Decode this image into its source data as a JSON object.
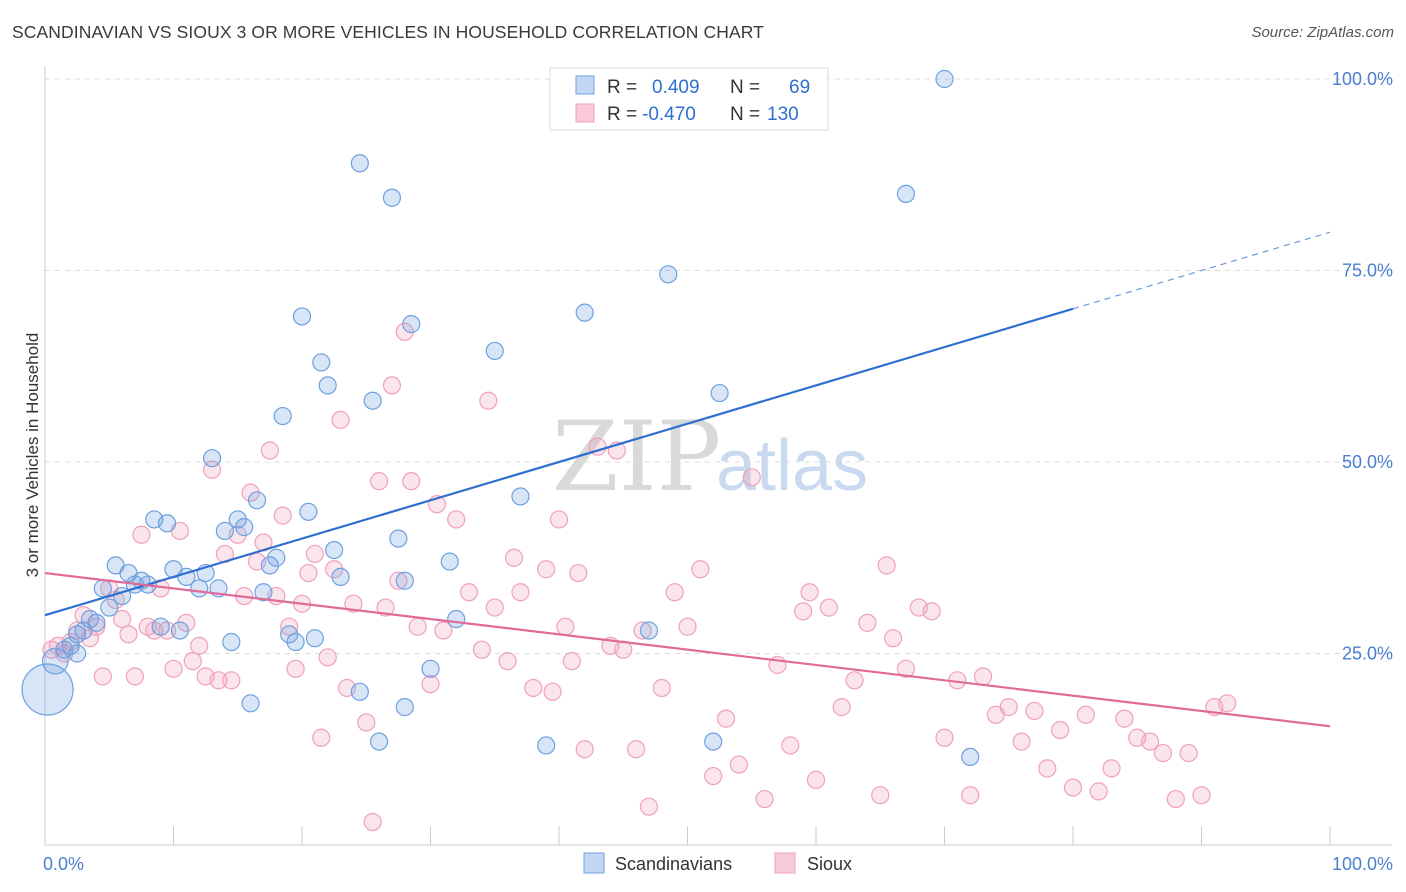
{
  "title": "SCANDINAVIAN VS SIOUX 3 OR MORE VEHICLES IN HOUSEHOLD CORRELATION CHART",
  "source": "Source: ZipAtlas.com",
  "watermark": {
    "zip": "ZIP",
    "atlas": "atlas"
  },
  "legend": {
    "rows": [
      {
        "r_label": "R =",
        "r_value": "0.409",
        "n_label": "N =",
        "n_value": "69"
      },
      {
        "r_label": "R =",
        "r_value": "-0.470",
        "n_label": "N =",
        "n_value": "130"
      }
    ]
  },
  "bottom_legend": {
    "items": [
      "Scandinavians",
      "Sioux"
    ]
  },
  "chart_data": {
    "type": "scatter",
    "title": "SCANDINAVIAN VS SIOUX 3 OR MORE VEHICLES IN HOUSEHOLD CORRELATION CHART",
    "xlabel": "",
    "ylabel": "3 or more Vehicles in Household",
    "xlim": [
      0,
      100
    ],
    "ylim": [
      0,
      100
    ],
    "x_tick_labels": [
      "0.0%",
      "100.0%"
    ],
    "y_ticks": [
      25,
      50,
      75,
      100
    ],
    "y_tick_labels": [
      "25.0%",
      "50.0%",
      "75.0%",
      "100.0%"
    ],
    "grid": true,
    "colors": {
      "scandinavians": "#6fa0e0",
      "sioux": "#f0a0bc",
      "blue_line": "#2e6fd0",
      "pink_line": "#e06a98"
    },
    "series": [
      {
        "name": "Scandinavians",
        "r": 0.409,
        "n": 69,
        "trend": {
          "x0": 0,
          "y0": 30.0,
          "x1": 80,
          "y1": 70.0,
          "dash_to_x": 100,
          "dash_to_y": 80.0
        },
        "points": [
          [
            0.2,
            20.3,
            3
          ],
          [
            0.8,
            24.0,
            1.5
          ],
          [
            1.5,
            25.5,
            1
          ],
          [
            2.0,
            26.0,
            1
          ],
          [
            2.5,
            27.5,
            1
          ],
          [
            3.0,
            28.0,
            1
          ],
          [
            3.5,
            29.5,
            1
          ],
          [
            4.0,
            29.0,
            1
          ],
          [
            4.5,
            33.5,
            1
          ],
          [
            5.0,
            31.0,
            1
          ],
          [
            5.5,
            36.5,
            1
          ],
          [
            6.0,
            32.5,
            1
          ],
          [
            6.5,
            35.5,
            1
          ],
          [
            7.0,
            34.0,
            1
          ],
          [
            7.5,
            34.5,
            1
          ],
          [
            8.5,
            42.5,
            1
          ],
          [
            9.0,
            28.5,
            1
          ],
          [
            9.5,
            42.0,
            1
          ],
          [
            10.0,
            36.0,
            1
          ],
          [
            10.5,
            28.0,
            1
          ],
          [
            11.0,
            35.0,
            1
          ],
          [
            12.0,
            33.5,
            1
          ],
          [
            12.5,
            35.5,
            1
          ],
          [
            13.0,
            50.5,
            1
          ],
          [
            13.5,
            33.5,
            1
          ],
          [
            14.0,
            41.0,
            1
          ],
          [
            14.5,
            26.5,
            1
          ],
          [
            15.0,
            42.5,
            1
          ],
          [
            15.5,
            41.5,
            1
          ],
          [
            16.0,
            18.5,
            1
          ],
          [
            16.5,
            45.0,
            1
          ],
          [
            17.0,
            33.0,
            1
          ],
          [
            17.5,
            36.5,
            1
          ],
          [
            18.0,
            37.5,
            1
          ],
          [
            18.5,
            56.0,
            1
          ],
          [
            19.0,
            27.5,
            1
          ],
          [
            19.5,
            26.5,
            1
          ],
          [
            20.0,
            69.0,
            1
          ],
          [
            20.5,
            43.5,
            1
          ],
          [
            21.0,
            27.0,
            1
          ],
          [
            21.5,
            63.0,
            1
          ],
          [
            22.0,
            60.0,
            1
          ],
          [
            22.5,
            38.5,
            1
          ],
          [
            23.0,
            35.0,
            1
          ],
          [
            24.5,
            89.0,
            1
          ],
          [
            24.5,
            20.0,
            1
          ],
          [
            25.5,
            58.0,
            1
          ],
          [
            26.0,
            13.5,
            1
          ],
          [
            27.0,
            84.5,
            1
          ],
          [
            27.5,
            40.0,
            1
          ],
          [
            28.0,
            18.0,
            1
          ],
          [
            28.0,
            34.5,
            1
          ],
          [
            28.5,
            68.0,
            1
          ],
          [
            30.0,
            23.0,
            1
          ],
          [
            31.5,
            37.0,
            1
          ],
          [
            32.0,
            29.5,
            1
          ],
          [
            35.0,
            64.5,
            1
          ],
          [
            37.0,
            45.5,
            1
          ],
          [
            39.0,
            13.0,
            1
          ],
          [
            42.0,
            69.5,
            1
          ],
          [
            47.0,
            28.0,
            1
          ],
          [
            48.5,
            74.5,
            1
          ],
          [
            52.0,
            13.5,
            1
          ],
          [
            52.5,
            59.0,
            1
          ],
          [
            67.0,
            85.0,
            1
          ],
          [
            70.0,
            100.0,
            1
          ],
          [
            72.0,
            11.5,
            1
          ],
          [
            2.5,
            25.0,
            1
          ],
          [
            8.0,
            34.0,
            1
          ]
        ]
      },
      {
        "name": "Sioux",
        "r": -0.47,
        "n": 130,
        "trend": {
          "x0": 0,
          "y0": 35.5,
          "x1": 100,
          "y1": 15.5
        },
        "points": [
          [
            0.5,
            25.5,
            1
          ],
          [
            1.0,
            26.0,
            1
          ],
          [
            1.5,
            25.0,
            1
          ],
          [
            2.0,
            26.5,
            1
          ],
          [
            2.5,
            28.0,
            1
          ],
          [
            3.0,
            30.0,
            1
          ],
          [
            3.5,
            27.0,
            1
          ],
          [
            4.0,
            28.5,
            1
          ],
          [
            4.5,
            22.0,
            1
          ],
          [
            5.0,
            33.5,
            1
          ],
          [
            5.5,
            32.0,
            1
          ],
          [
            6.0,
            29.5,
            1
          ],
          [
            6.5,
            27.5,
            1
          ],
          [
            7.0,
            22.0,
            1
          ],
          [
            7.5,
            40.5,
            1
          ],
          [
            8.0,
            28.5,
            1
          ],
          [
            8.5,
            28.0,
            1
          ],
          [
            9.0,
            33.5,
            1
          ],
          [
            9.5,
            28.0,
            1
          ],
          [
            10.0,
            23.0,
            1
          ],
          [
            10.5,
            41.0,
            1
          ],
          [
            11.0,
            29.0,
            1
          ],
          [
            11.5,
            24.0,
            1
          ],
          [
            12.0,
            26.0,
            1
          ],
          [
            12.5,
            22.0,
            1
          ],
          [
            13.0,
            49.0,
            1
          ],
          [
            13.5,
            21.5,
            1
          ],
          [
            14.0,
            38.0,
            1
          ],
          [
            14.5,
            21.5,
            1
          ],
          [
            15.0,
            40.5,
            1
          ],
          [
            15.5,
            32.5,
            1
          ],
          [
            16.0,
            46.0,
            1
          ],
          [
            16.5,
            37.0,
            1
          ],
          [
            17.0,
            39.5,
            1
          ],
          [
            17.5,
            51.5,
            1
          ],
          [
            18.0,
            32.5,
            1
          ],
          [
            18.5,
            43.0,
            1
          ],
          [
            19.0,
            28.5,
            1
          ],
          [
            19.5,
            23.0,
            1
          ],
          [
            20.0,
            31.5,
            1
          ],
          [
            20.5,
            35.5,
            1
          ],
          [
            21.0,
            38.0,
            1
          ],
          [
            21.5,
            14.0,
            1
          ],
          [
            22.0,
            24.5,
            1
          ],
          [
            22.5,
            36.0,
            1
          ],
          [
            23.0,
            55.5,
            1
          ],
          [
            23.5,
            20.5,
            1
          ],
          [
            24.0,
            31.5,
            1
          ],
          [
            25.0,
            16.0,
            1
          ],
          [
            25.5,
            3.0,
            1
          ],
          [
            26.0,
            47.5,
            1
          ],
          [
            27.0,
            60.0,
            1
          ],
          [
            27.5,
            34.5,
            1
          ],
          [
            28.0,
            67.0,
            1
          ],
          [
            28.5,
            47.5,
            1
          ],
          [
            29.0,
            28.5,
            1
          ],
          [
            30.0,
            21.0,
            1
          ],
          [
            30.5,
            44.5,
            1
          ],
          [
            31.0,
            28.0,
            1
          ],
          [
            32.0,
            42.5,
            1
          ],
          [
            33.0,
            33.0,
            1
          ],
          [
            34.0,
            25.5,
            1
          ],
          [
            34.5,
            58.0,
            1
          ],
          [
            35.0,
            31.0,
            1
          ],
          [
            36.0,
            24.0,
            1
          ],
          [
            37.0,
            33.0,
            1
          ],
          [
            38.0,
            20.5,
            1
          ],
          [
            39.0,
            36.0,
            1
          ],
          [
            39.5,
            20.0,
            1
          ],
          [
            40.0,
            42.5,
            1
          ],
          [
            40.5,
            28.5,
            1
          ],
          [
            41.0,
            24.0,
            1
          ],
          [
            41.5,
            35.5,
            1
          ],
          [
            42.0,
            12.5,
            1
          ],
          [
            43.0,
            52.0,
            1
          ],
          [
            44.0,
            26.0,
            1
          ],
          [
            44.5,
            51.5,
            1
          ],
          [
            45.0,
            25.5,
            1
          ],
          [
            46.0,
            12.5,
            1
          ],
          [
            47.0,
            5.0,
            1
          ],
          [
            48.0,
            20.5,
            1
          ],
          [
            49.0,
            33.0,
            1
          ],
          [
            50.0,
            28.5,
            1
          ],
          [
            51.0,
            36.0,
            1
          ],
          [
            52.0,
            9.0,
            1
          ],
          [
            53.0,
            16.5,
            1
          ],
          [
            54.0,
            10.5,
            1
          ],
          [
            55.0,
            48.0,
            1
          ],
          [
            56.0,
            6.0,
            1
          ],
          [
            57.0,
            23.5,
            1
          ],
          [
            58.0,
            13.0,
            1
          ],
          [
            59.0,
            30.5,
            1
          ],
          [
            60.0,
            8.5,
            1
          ],
          [
            61.0,
            31.0,
            1
          ],
          [
            62.0,
            18.0,
            1
          ],
          [
            63.0,
            21.5,
            1
          ],
          [
            64.0,
            29.0,
            1
          ],
          [
            65.0,
            6.5,
            1
          ],
          [
            66.0,
            27.0,
            1
          ],
          [
            67.0,
            23.0,
            1
          ],
          [
            70.0,
            14.0,
            1
          ],
          [
            71.0,
            21.5,
            1
          ],
          [
            72.0,
            6.5,
            1
          ],
          [
            73.0,
            22.0,
            1
          ],
          [
            74.0,
            17.0,
            1
          ],
          [
            75.0,
            18.0,
            1
          ],
          [
            76.0,
            13.5,
            1
          ],
          [
            77.0,
            17.5,
            1
          ],
          [
            78.0,
            10.0,
            1
          ],
          [
            79.0,
            15.0,
            1
          ],
          [
            80.0,
            7.5,
            1
          ],
          [
            81.0,
            17.0,
            1
          ],
          [
            82.0,
            7.0,
            1
          ],
          [
            83.0,
            10.0,
            1
          ],
          [
            84.0,
            16.5,
            1
          ],
          [
            85.0,
            14.0,
            1
          ],
          [
            86.0,
            13.5,
            1
          ],
          [
            87.0,
            12.0,
            1
          ],
          [
            88.0,
            6.0,
            1
          ],
          [
            89.0,
            12.0,
            1
          ],
          [
            90.0,
            6.5,
            1
          ],
          [
            91.0,
            18.0,
            1
          ],
          [
            92.0,
            18.5,
            1
          ],
          [
            68.0,
            31.0,
            1
          ],
          [
            69.0,
            30.5,
            1
          ],
          [
            26.5,
            31.0,
            1
          ],
          [
            46.5,
            28.0,
            1
          ],
          [
            36.5,
            37.5,
            1
          ],
          [
            59.5,
            33.0,
            1
          ],
          [
            65.5,
            36.5,
            1
          ]
        ]
      }
    ]
  }
}
